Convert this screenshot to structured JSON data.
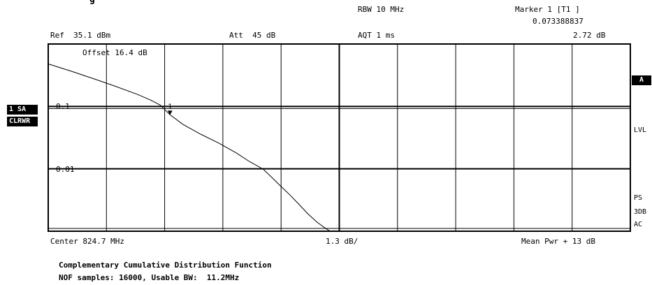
{
  "header": {
    "title_fragment": "g",
    "rbw": "RBW 10 MHz",
    "marker_title": "Marker 1 [T1 ]",
    "marker_x": "0.073388837",
    "marker_level": "2.72 dB",
    "ref": "Ref  35.1 dBm",
    "att": "Att  45 dB",
    "aqt": "AQT 1 ms"
  },
  "left_panel": {
    "trace_badge": "1 SA",
    "mode_badge": "CLRWR"
  },
  "right_panel": {
    "trace_badge": "A",
    "lvl": "LVL",
    "ps": "PS",
    "db3": "3DB",
    "ac": "AC"
  },
  "plot_labels": {
    "offset": "Offset  16.4 dB",
    "y_tick_1": "0.1",
    "y_tick_2": "0.01",
    "marker_number": "1"
  },
  "footer": {
    "center": "Center 824.7 MHz",
    "scale": "1.3 dB/",
    "mean_pwr": "Mean Pwr + 13 dB"
  },
  "caption": {
    "line1": "Complementary Cumulative Distribution Function",
    "line2": "NOF samples: 16000, Usable BW:  11.2MHz"
  },
  "chart_data": {
    "type": "line",
    "title": "Complementary Cumulative Distribution Function",
    "xlabel": "",
    "ylabel": "",
    "x_unit": "dB above mean power",
    "x_range": [
      0,
      13
    ],
    "x_divisions": 10,
    "x_scale_per_div": 1.3,
    "y_scale": "log",
    "y_range": [
      0.001,
      1
    ],
    "y_tick_labels": [
      "0.1",
      "0.01"
    ],
    "grid": true,
    "marker": {
      "name": "Marker 1 [T1 ]",
      "x": 2.72,
      "y": 0.073388837
    },
    "series": [
      {
        "values_xy": [
          [
            0.0,
            0.48
          ],
          [
            0.5,
            0.37
          ],
          [
            1.0,
            0.28
          ],
          [
            1.5,
            0.21
          ],
          [
            2.0,
            0.155
          ],
          [
            2.3,
            0.125
          ],
          [
            2.5,
            0.105
          ],
          [
            2.72,
            0.0734
          ],
          [
            3.0,
            0.052
          ],
          [
            3.4,
            0.036
          ],
          [
            3.8,
            0.026
          ],
          [
            4.2,
            0.018
          ],
          [
            4.5,
            0.013
          ],
          [
            4.8,
            0.0099
          ],
          [
            5.0,
            0.0072
          ],
          [
            5.2,
            0.0052
          ],
          [
            5.4,
            0.0038
          ],
          [
            5.6,
            0.0027
          ],
          [
            5.8,
            0.0019
          ],
          [
            6.0,
            0.0014
          ],
          [
            6.2,
            0.0011
          ],
          [
            6.3,
            0.001
          ]
        ]
      }
    ]
  }
}
